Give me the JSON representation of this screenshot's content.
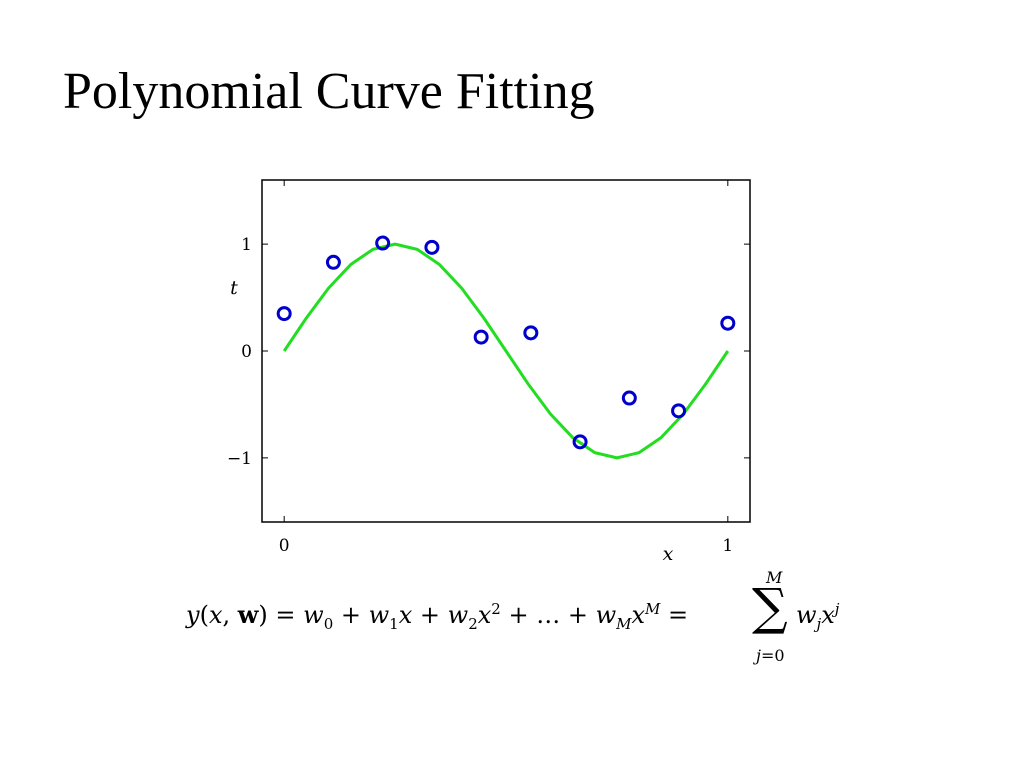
{
  "slide": {
    "title": "Polynomial Curve Fitting"
  },
  "formula": {
    "main": "y(x, w) = w₀ + w₁x + w₂x² + … + w_M x^M =",
    "sum_upper": "M",
    "sum_lower": "j=0",
    "tail": "w_j x^j"
  },
  "chart_data": {
    "type": "scatter",
    "xlabel": "x",
    "ylabel": "t",
    "xlim": [
      -0.05,
      1.05
    ],
    "ylim": [
      -1.6,
      1.6
    ],
    "x_ticks": [
      0,
      1
    ],
    "y_ticks": [
      -1,
      0,
      1
    ],
    "x_tick_labels": [
      "0",
      "1"
    ],
    "y_tick_labels": [
      "−1",
      "0",
      "1"
    ],
    "grid": false,
    "series": [
      {
        "type": "scatter",
        "color": "#0000cc",
        "marker": "circle-open",
        "x": [
          0.0,
          0.111,
          0.222,
          0.333,
          0.444,
          0.556,
          0.667,
          0.778,
          0.889,
          1.0
        ],
        "y": [
          0.35,
          0.83,
          1.01,
          0.97,
          0.13,
          0.17,
          -0.85,
          -0.44,
          -0.56,
          0.26
        ]
      },
      {
        "type": "line",
        "color": "#22dd22",
        "function": "sin(2*pi*x)",
        "x": [
          0,
          0.05,
          0.1,
          0.15,
          0.2,
          0.25,
          0.3,
          0.35,
          0.4,
          0.45,
          0.5,
          0.55,
          0.6,
          0.65,
          0.7,
          0.75,
          0.8,
          0.85,
          0.9,
          0.95,
          1.0
        ],
        "y": [
          0,
          0.309,
          0.588,
          0.809,
          0.951,
          1.0,
          0.951,
          0.809,
          0.588,
          0.309,
          0,
          -0.309,
          -0.588,
          -0.809,
          -0.951,
          -1.0,
          -0.951,
          -0.809,
          -0.588,
          -0.309,
          0
        ]
      }
    ]
  }
}
